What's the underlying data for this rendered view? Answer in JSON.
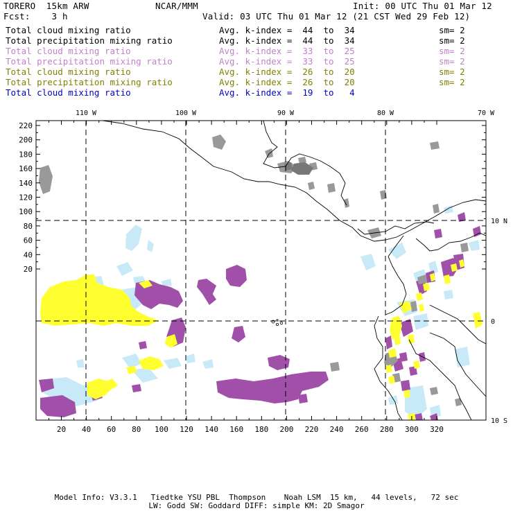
{
  "header": {
    "model": "TORERO  15km ARW",
    "org": "NCAR/MMM",
    "init": "Init: 00 UTC Thu 01 Mar 12",
    "fcst": "Fcst:    3 h",
    "valid": "Valid: 03 UTC Thu 01 Mar 12 (21 CST Wed 29 Feb 12)"
  },
  "legend": [
    {
      "field": "Total cloud mixing ratio",
      "index": "Avg. k-index =  44  to  34",
      "sm": "sm= 2",
      "color": "#000000"
    },
    {
      "field": "Total precipitation mixing ratio",
      "index": "Avg. k-index =  44  to  34",
      "sm": "sm= 2",
      "color": "#000000"
    },
    {
      "field": "Total cloud mixing ratio",
      "index": "Avg. k-index =  33  to  25",
      "sm": "sm= 2",
      "color": "#c080c8"
    },
    {
      "field": "Total precipitation mixing ratio",
      "index": "Avg. k-index =  33  to  25",
      "sm": "sm= 2",
      "color": "#c080c8"
    },
    {
      "field": "Total cloud mixing ratio",
      "index": "Avg. k-index =  26  to  20",
      "sm": "sm= 2",
      "color": "#808000"
    },
    {
      "field": "Total precipitation mixing ratio",
      "index": "Avg. k-index =  26  to  20",
      "sm": "sm= 2",
      "color": "#808000"
    },
    {
      "field": "Total cloud mixing ratio",
      "index": "Avg. k-index =  19  to   4",
      "sm": "",
      "color": "#0000c8"
    }
  ],
  "map": {
    "top_lon_labels": [
      "110 W",
      "100 W",
      "90 W",
      "80 W",
      "70 W"
    ],
    "right_lat_labels": [
      "10 N",
      "0",
      "10 S"
    ],
    "y_ticks": [
      "220",
      "200",
      "180",
      "160",
      "140",
      "120",
      "100",
      "80",
      "60",
      "40",
      "20"
    ],
    "x_ticks": [
      "20",
      "40",
      "60",
      "80",
      "100",
      "120",
      "140",
      "160",
      "180",
      "200",
      "220",
      "240",
      "260",
      "280",
      "300",
      "320"
    ],
    "colors": {
      "gray": "#999999",
      "darkgray": "#777777",
      "purple": "#a050a8",
      "yellow": "#ffff30",
      "lightblue": "#c8eaf8",
      "coast": "#000000"
    }
  },
  "footer": {
    "line1": "Model Info: V3.3.1   Tiedtke YSU PBL  Thompson    Noah LSM  15 km,   44 levels,   72 sec",
    "line2": "LW: Godd SW: Goddard DIFF: simple KM: 2D Smagor"
  }
}
